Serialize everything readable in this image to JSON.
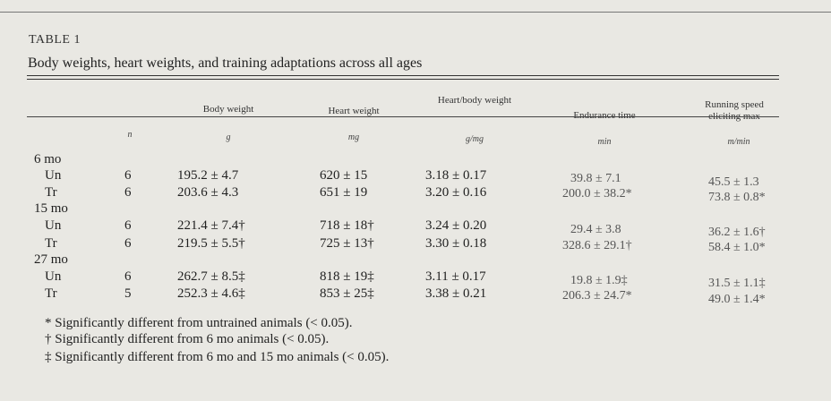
{
  "table": {
    "label": "TABLE 1",
    "caption": "Body weights, heart weights, and training adaptations across all ages",
    "headers": {
      "body_weight": "Body weight",
      "heart_weight": "Heart weight",
      "heart_body_weight": "Heart/body weight",
      "endurance_time": "Endurance time",
      "running_speed": "Running speed eliciting max"
    },
    "units": {
      "n": "n",
      "body_weight": "g",
      "heart_weight": "mg",
      "heart_body_weight": "g/mg",
      "endurance_time": "min",
      "running_speed": "m/min"
    },
    "groups": [
      {
        "label": "6 mo",
        "rows": [
          {
            "label": "Un",
            "n": "6",
            "body_weight": "195.2 ± 4.7",
            "heart_weight": "620 ± 15",
            "heart_body": "3.18 ± 0.17",
            "endurance": "39.8 ±  7.1",
            "running": "45.5 ± 1.3"
          },
          {
            "label": "Tr",
            "n": "6",
            "body_weight": "203.6 ± 4.3",
            "heart_weight": "651 ± 19",
            "heart_body": "3.20 ± 0.16",
            "endurance": "200.0 ± 38.2*",
            "running": "73.8 ± 0.8*"
          }
        ]
      },
      {
        "label": "15 mo",
        "rows": [
          {
            "label": "Un",
            "n": "6",
            "body_weight": "221.4 ± 7.4†",
            "heart_weight": "718 ± 18†",
            "heart_body": "3.24 ± 0.20",
            "endurance": "29.4 ±  3.8",
            "running": "36.2 ± 1.6†"
          },
          {
            "label": "Tr",
            "n": "6",
            "body_weight": "219.5 ± 5.5†",
            "heart_weight": "725 ± 13†",
            "heart_body": "3.30 ± 0.18",
            "endurance": "328.6 ± 29.1†",
            "running": "58.4 ± 1.0*"
          }
        ]
      },
      {
        "label": "27 mo",
        "rows": [
          {
            "label": "Un",
            "n": "6",
            "body_weight": "262.7 ± 8.5‡",
            "heart_weight": "818 ± 19‡",
            "heart_body": "3.11 ± 0.17",
            "endurance": "19.8 ±  1.9‡",
            "running": "31.5 ± 1.1‡"
          },
          {
            "label": "Tr",
            "n": "5",
            "body_weight": "252.3 ± 4.6‡",
            "heart_weight": "853 ± 25‡",
            "heart_body": "3.38 ± 0.21",
            "endurance": "206.3 ± 24.7*",
            "running": "49.0 ± 1.4*"
          }
        ]
      }
    ],
    "footnotes": [
      "* Significantly different from untrained animals (< 0.05).",
      "† Significantly different from 6 mo animals (< 0.05).",
      "‡ Significantly different from 6 mo and 15 mo animals (< 0.05)."
    ]
  }
}
